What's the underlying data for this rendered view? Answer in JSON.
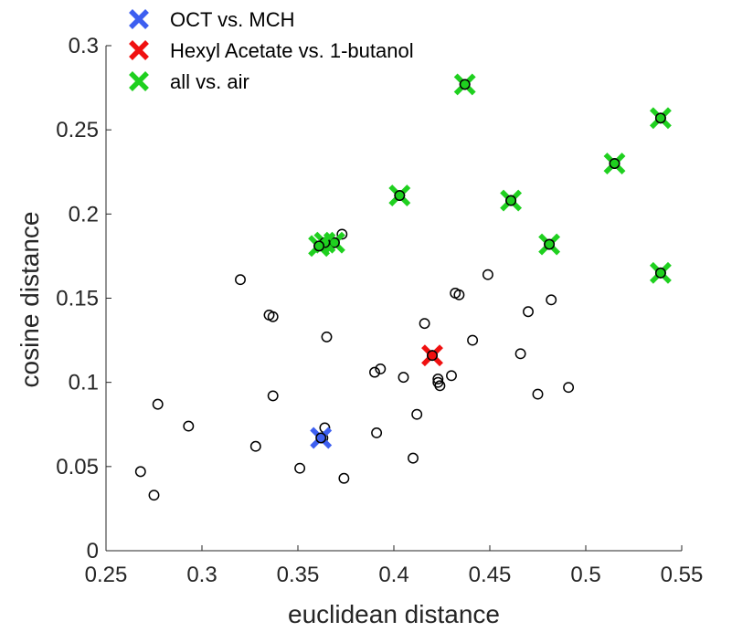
{
  "chart_data": {
    "type": "scatter",
    "xlabel": "euclidean distance",
    "ylabel": "cosine distance",
    "xlim": [
      0.25,
      0.55
    ],
    "ylim": [
      0,
      0.3
    ],
    "x_ticks": [
      "0.25",
      "0.3",
      "0.35",
      "0.4",
      "0.45",
      "0.5",
      "0.55"
    ],
    "y_ticks": [
      "0",
      "0.05",
      "0.1",
      "0.15",
      "0.2",
      "0.25",
      "0.3"
    ],
    "grid": false,
    "legend_position": "top-left",
    "all_pairs": [
      [
        0.268,
        0.047
      ],
      [
        0.275,
        0.033
      ],
      [
        0.277,
        0.087
      ],
      [
        0.293,
        0.074
      ],
      [
        0.32,
        0.161
      ],
      [
        0.328,
        0.062
      ],
      [
        0.335,
        0.14
      ],
      [
        0.337,
        0.139
      ],
      [
        0.337,
        0.092
      ],
      [
        0.351,
        0.049
      ],
      [
        0.361,
        0.181
      ],
      [
        0.363,
        0.067
      ],
      [
        0.364,
        0.073
      ],
      [
        0.365,
        0.127
      ],
      [
        0.366,
        0.183
      ],
      [
        0.369,
        0.183
      ],
      [
        0.373,
        0.188
      ],
      [
        0.374,
        0.043
      ],
      [
        0.39,
        0.106
      ],
      [
        0.391,
        0.07
      ],
      [
        0.393,
        0.108
      ],
      [
        0.403,
        0.211
      ],
      [
        0.405,
        0.103
      ],
      [
        0.41,
        0.055
      ],
      [
        0.412,
        0.081
      ],
      [
        0.416,
        0.135
      ],
      [
        0.42,
        0.116
      ],
      [
        0.423,
        0.102
      ],
      [
        0.423,
        0.1
      ],
      [
        0.424,
        0.098
      ],
      [
        0.43,
        0.104
      ],
      [
        0.432,
        0.153
      ],
      [
        0.434,
        0.152
      ],
      [
        0.437,
        0.277
      ],
      [
        0.441,
        0.125
      ],
      [
        0.449,
        0.164
      ],
      [
        0.461,
        0.208
      ],
      [
        0.466,
        0.117
      ],
      [
        0.47,
        0.142
      ],
      [
        0.475,
        0.093
      ],
      [
        0.481,
        0.182
      ],
      [
        0.482,
        0.149
      ],
      [
        0.491,
        0.097
      ],
      [
        0.515,
        0.23
      ],
      [
        0.539,
        0.257
      ],
      [
        0.539,
        0.165
      ]
    ],
    "series": [
      {
        "name": "OCT vs. MCH",
        "color": "#3d5ff0",
        "marker": "x",
        "points": [
          [
            0.362,
            0.067
          ]
        ]
      },
      {
        "name": "Hexyl Acetate vs. 1-butanol",
        "color": "#f01010",
        "marker": "x",
        "points": [
          [
            0.42,
            0.116
          ]
        ]
      },
      {
        "name": "all vs. air",
        "color": "#1fd01f",
        "marker": "x",
        "points": [
          [
            0.437,
            0.277
          ],
          [
            0.539,
            0.257
          ],
          [
            0.515,
            0.23
          ],
          [
            0.403,
            0.211
          ],
          [
            0.461,
            0.208
          ],
          [
            0.369,
            0.183
          ],
          [
            0.364,
            0.183
          ],
          [
            0.361,
            0.181
          ],
          [
            0.481,
            0.182
          ],
          [
            0.539,
            0.165
          ]
        ]
      }
    ]
  }
}
